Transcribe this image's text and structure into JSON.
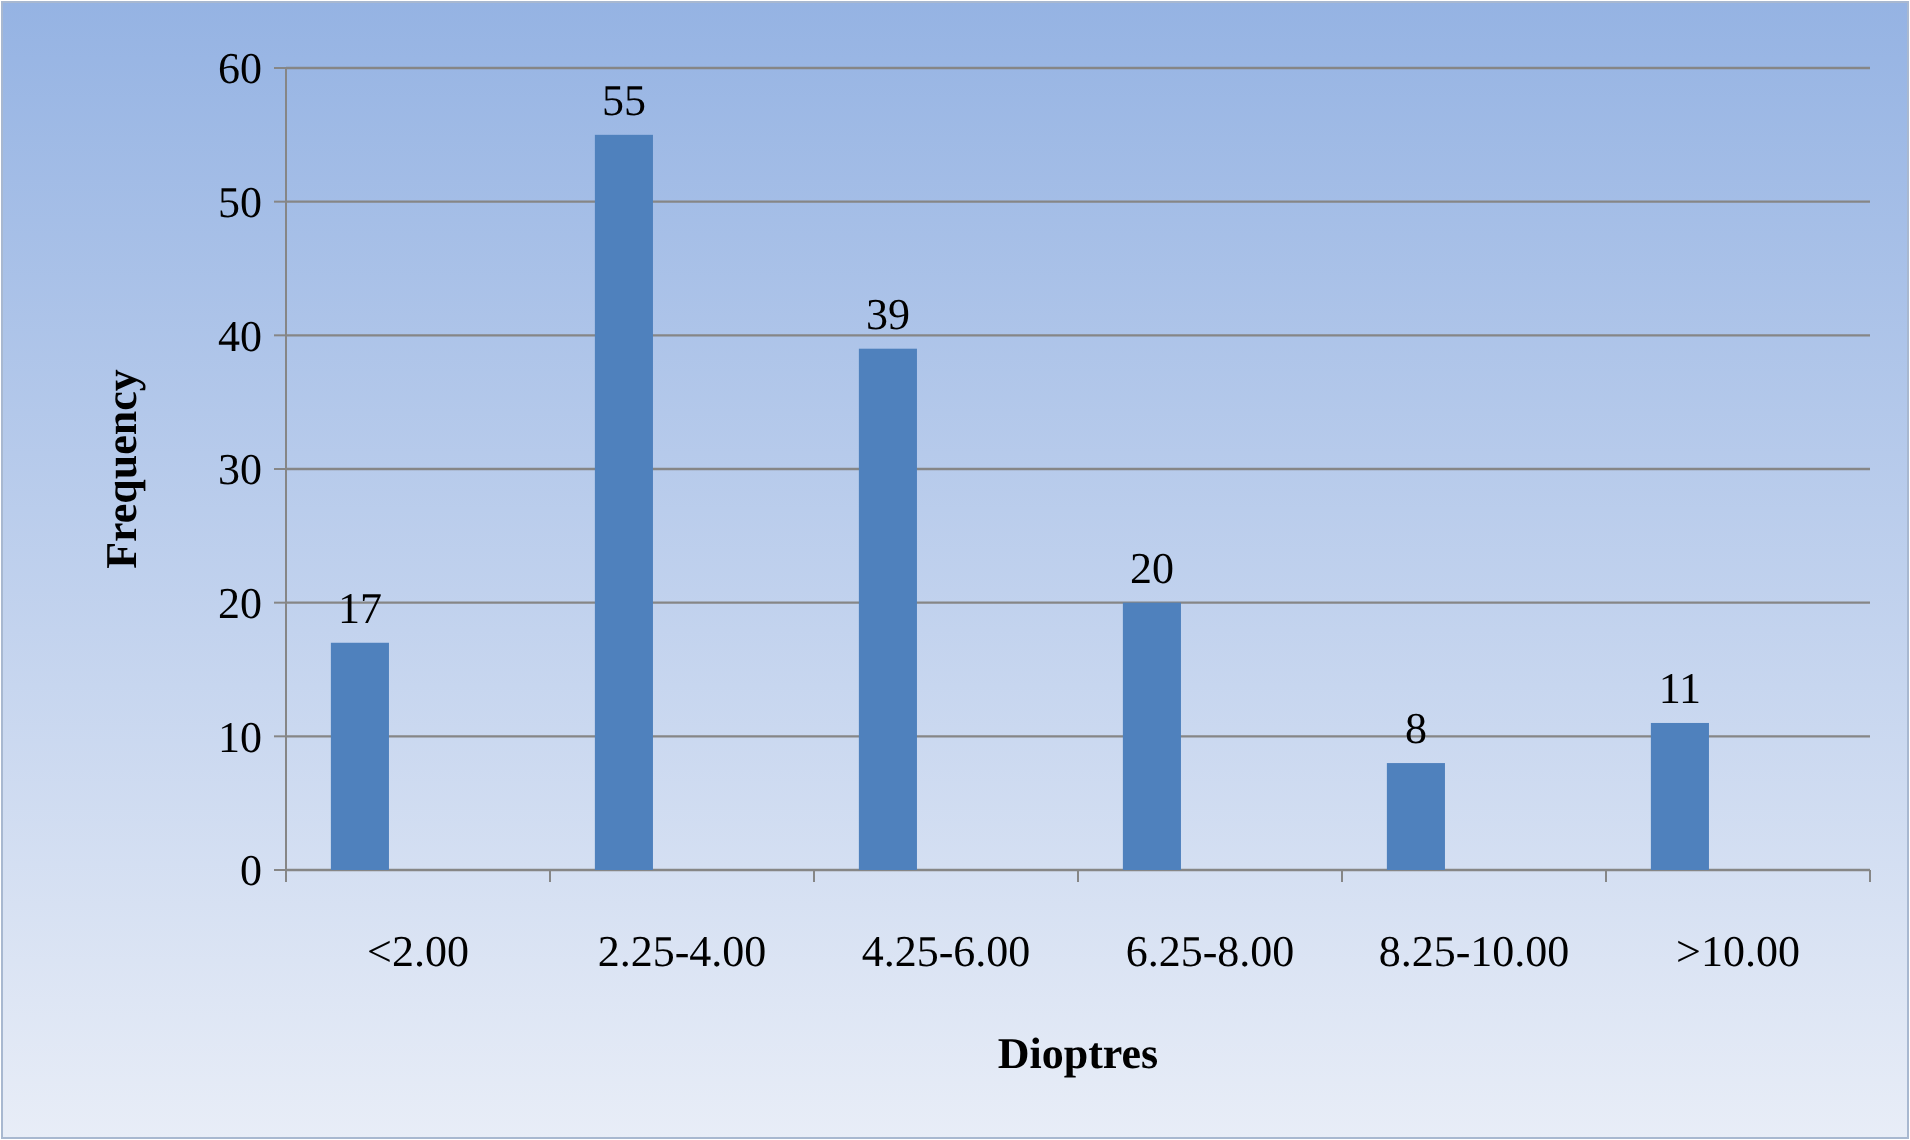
{
  "chart_data": {
    "type": "bar",
    "xlabel": "Dioptres",
    "ylabel": "Frequency",
    "categories": [
      "<2.00",
      "2.25-4.00",
      "4.25-6.00",
      "6.25-8.00",
      "8.25-10.00",
      ">10.00"
    ],
    "values": [
      17,
      55,
      39,
      20,
      8,
      11
    ],
    "color": "#4f81bd",
    "ylim": [
      0,
      60
    ],
    "yticks": [
      0,
      10,
      20,
      30,
      40,
      50,
      60
    ],
    "grid": "y",
    "data_labels": true
  }
}
